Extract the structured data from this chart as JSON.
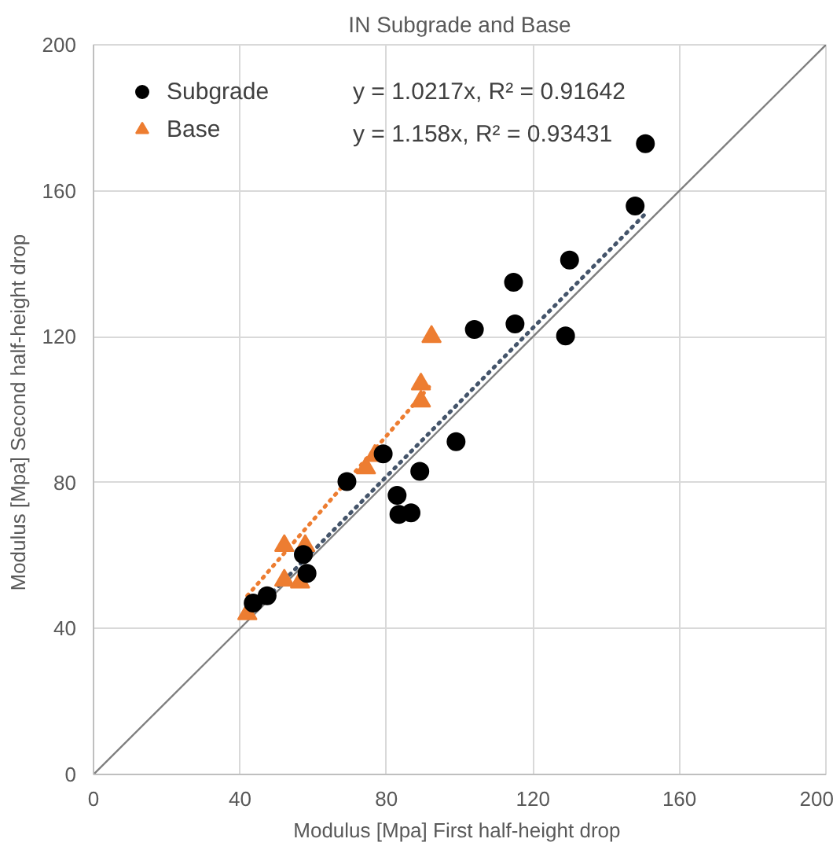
{
  "chart_data": {
    "type": "scatter",
    "title": "IN Subgrade and Base",
    "xlabel": "Modulus  [Mpa] First half-height drop",
    "ylabel": "Modulus  [Mpa] Second half-height drop",
    "xlim": [
      0,
      200
    ],
    "ylim": [
      0,
      200
    ],
    "xticks": [
      0,
      40,
      80,
      120,
      160,
      200
    ],
    "yticks": [
      0,
      40,
      80,
      120,
      160,
      200
    ],
    "grid": true,
    "legend": "top left",
    "annotations": [
      "y = 1.0217x, R² = 0.91642",
      "y = 1.158x, R² = 0.93431"
    ],
    "series": [
      {
        "name": "Subgrade",
        "marker": "circle",
        "color": "#000000",
        "x": [
          43.6,
          47.4,
          57.3,
          58.3,
          69.2,
          79.1,
          82.9,
          83.4,
          86.7,
          89.1,
          99,
          104,
          114.7,
          115.1,
          130,
          128.9,
          147.9,
          150.7
        ],
        "values": [
          47,
          49,
          60.3,
          55.1,
          80.3,
          87.9,
          76.5,
          71.3,
          71.7,
          83.1,
          91.2,
          122,
          134.9,
          123.5,
          141,
          120.2,
          155.8,
          172.9
        ]
      },
      {
        "name": "Base",
        "marker": "triangle",
        "color": "#ed7d31",
        "x": [
          42,
          52.1,
          57.8,
          52.1,
          56.4,
          74.4,
          76.8,
          89.4,
          89.4,
          92.3
        ],
        "values": [
          44,
          62.7,
          62.7,
          53.2,
          52.7,
          84,
          87.4,
          107,
          102.3,
          120
        ]
      },
      {
        "type": "line",
        "line_style": "dotted",
        "color": "#44546a",
        "x": [
          43,
          151
        ],
        "values": [
          44,
          154
        ]
      },
      {
        "type": "line",
        "line_style": "dotted",
        "color": "#ed7d31",
        "x": [
          42,
          92.3
        ],
        "values": [
          49,
          107
        ]
      },
      {
        "type": "line",
        "line_style": "solid",
        "color": "#7f7f7f",
        "x": [
          0,
          200
        ],
        "values": [
          0,
          200
        ]
      }
    ]
  }
}
